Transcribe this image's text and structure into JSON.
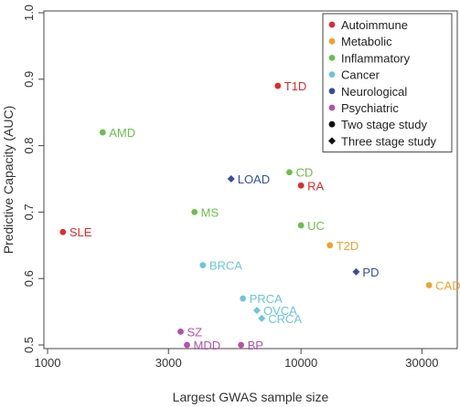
{
  "chart_data": {
    "type": "scatter",
    "xlabel": "Largest GWAS sample size",
    "ylabel": "Predictive Capacity (AUC)",
    "x_scale": "log",
    "xlim": [
      1000,
      40000
    ],
    "ylim": [
      0.5,
      1.0
    ],
    "x_ticks": [
      1000,
      3000,
      10000,
      30000
    ],
    "x_tick_labels": [
      "1000",
      "3000",
      "10000",
      "30000"
    ],
    "y_ticks": [
      0.5,
      0.6,
      0.7,
      0.8,
      0.9,
      1.0
    ],
    "y_tick_labels": [
      "0.5",
      "0.6",
      "0.7",
      "0.8",
      "0.9",
      "1.0"
    ],
    "grid": false,
    "legend_position": "top-right",
    "categories": [
      {
        "key": "autoimmune",
        "name": "Autoimmune",
        "color": "#e02a2a"
      },
      {
        "key": "metabolic",
        "name": "Metabolic",
        "color": "#f0a22a"
      },
      {
        "key": "inflammatory",
        "name": "Inflammatory",
        "color": "#6abf4b"
      },
      {
        "key": "cancer",
        "name": "Cancer",
        "color": "#6cc5dc"
      },
      {
        "key": "neurological",
        "name": "Neurological",
        "color": "#334f9e"
      },
      {
        "key": "psychiatric",
        "name": "Psychiatric",
        "color": "#b352a8"
      }
    ],
    "shapes": [
      {
        "key": "circle",
        "name": "Two stage study"
      },
      {
        "key": "diamond",
        "name": "Three stage study"
      }
    ],
    "points": [
      {
        "label": "T1D",
        "x": 8100,
        "y": 0.89,
        "category": "autoimmune",
        "shape": "circle"
      },
      {
        "label": "AMD",
        "x": 1650,
        "y": 0.82,
        "category": "inflammatory",
        "shape": "circle"
      },
      {
        "label": "CD",
        "x": 9000,
        "y": 0.76,
        "category": "inflammatory",
        "shape": "circle"
      },
      {
        "label": "LOAD",
        "x": 5300,
        "y": 0.75,
        "category": "neurological",
        "shape": "diamond"
      },
      {
        "label": "RA",
        "x": 10000,
        "y": 0.74,
        "category": "autoimmune",
        "shape": "circle"
      },
      {
        "label": "MS",
        "x": 3800,
        "y": 0.7,
        "category": "inflammatory",
        "shape": "circle"
      },
      {
        "label": "SLE",
        "x": 1150,
        "y": 0.67,
        "category": "autoimmune",
        "shape": "circle"
      },
      {
        "label": "UC",
        "x": 10000,
        "y": 0.68,
        "category": "inflammatory",
        "shape": "circle"
      },
      {
        "label": "T2D",
        "x": 13000,
        "y": 0.65,
        "category": "metabolic",
        "shape": "circle"
      },
      {
        "label": "BRCA",
        "x": 4100,
        "y": 0.62,
        "category": "cancer",
        "shape": "circle"
      },
      {
        "label": "PD",
        "x": 16500,
        "y": 0.61,
        "category": "neurological",
        "shape": "diamond"
      },
      {
        "label": "CAD",
        "x": 32000,
        "y": 0.59,
        "category": "metabolic",
        "shape": "circle"
      },
      {
        "label": "PRCA",
        "x": 5900,
        "y": 0.57,
        "category": "cancer",
        "shape": "circle"
      },
      {
        "label": "OVCA",
        "x": 6700,
        "y": 0.552,
        "category": "cancer",
        "shape": "diamond"
      },
      {
        "label": "CRCA",
        "x": 7000,
        "y": 0.54,
        "category": "cancer",
        "shape": "diamond"
      },
      {
        "label": "SZ",
        "x": 3350,
        "y": 0.52,
        "category": "psychiatric",
        "shape": "circle"
      },
      {
        "label": "MDD",
        "x": 3550,
        "y": 0.5,
        "category": "psychiatric",
        "shape": "circle"
      },
      {
        "label": "BP",
        "x": 5800,
        "y": 0.5,
        "category": "psychiatric",
        "shape": "circle"
      }
    ]
  }
}
